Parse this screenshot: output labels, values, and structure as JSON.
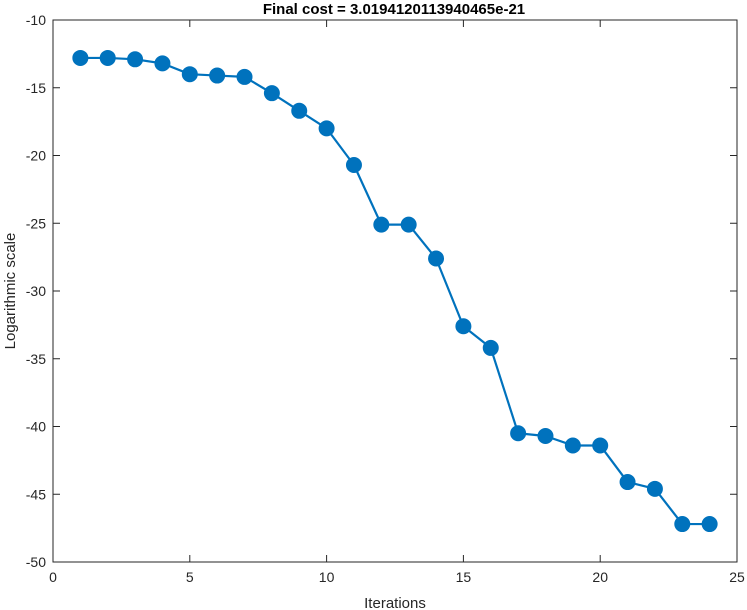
{
  "chart_data": {
    "type": "line",
    "title": "Final cost = 3.0194120113940465e-21",
    "xlabel": "Iterations",
    "ylabel": "Logarithmic scale",
    "xlim": [
      0,
      25
    ],
    "ylim": [
      -50,
      -10
    ],
    "xticks": [
      0,
      5,
      10,
      15,
      20,
      25
    ],
    "yticks": [
      -50,
      -45,
      -40,
      -35,
      -30,
      -25,
      -20,
      -15,
      -10
    ],
    "grid": false,
    "line_color": "#0072BD",
    "marker": "filled-circle",
    "series": [
      {
        "x": [
          1,
          2,
          3,
          4,
          5,
          6,
          7,
          8,
          9,
          10,
          11,
          12,
          13,
          14,
          15,
          16,
          17,
          18,
          19,
          20,
          21,
          22,
          23,
          24
        ],
        "values": [
          -12.8,
          -12.8,
          -12.9,
          -13.2,
          -14.0,
          -14.1,
          -14.2,
          -15.4,
          -16.7,
          -18.0,
          -20.7,
          -25.1,
          -25.1,
          -27.6,
          -32.6,
          -34.2,
          -40.5,
          -40.7,
          -41.4,
          -41.4,
          -44.1,
          -44.6,
          -47.2,
          -47.2
        ]
      }
    ]
  }
}
